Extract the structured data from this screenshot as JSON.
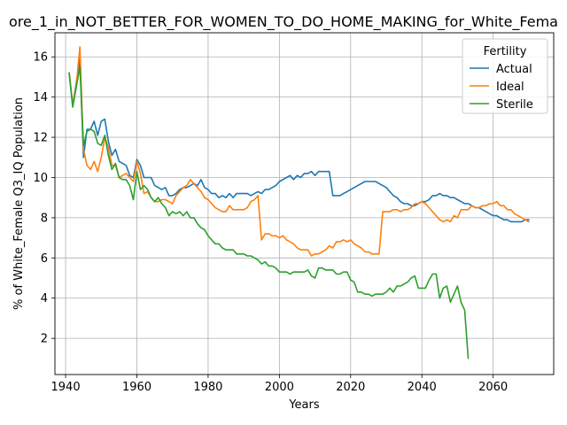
{
  "chart_data": {
    "type": "line",
    "title": "ore_1_in_NOT_BETTER_FOR_WOMEN_TO_DO_HOME_MAKING_for_White_Fema",
    "xlabel": "Years",
    "ylabel": "% of White_Female Q3_IQ Population",
    "xlim": [
      1937,
      2077
    ],
    "ylim": [
      0.2,
      17.2
    ],
    "xticks": [
      1940,
      1960,
      1980,
      2000,
      2020,
      2040,
      2060
    ],
    "yticks": [
      2,
      4,
      6,
      8,
      10,
      12,
      14,
      16
    ],
    "grid": true,
    "legend": {
      "title": "Fertility",
      "placement": "top-right"
    },
    "series": [
      {
        "name": "Actual",
        "color": "#1f77b4",
        "x": [
          1941,
          1942,
          1943,
          1944,
          1945,
          1946,
          1947,
          1948,
          1949,
          1950,
          1951,
          1952,
          1953,
          1954,
          1955,
          1956,
          1957,
          1958,
          1959,
          1960,
          1961,
          1962,
          1963,
          1964,
          1965,
          1966,
          1967,
          1968,
          1969,
          1970,
          1971,
          1972,
          1973,
          1974,
          1975,
          1976,
          1977,
          1978,
          1979,
          1980,
          1981,
          1982,
          1983,
          1984,
          1985,
          1986,
          1987,
          1988,
          1989,
          1990,
          1991,
          1992,
          1993,
          1994,
          1995,
          1996,
          1997,
          1998,
          1999,
          2000,
          2001,
          2002,
          2003,
          2004,
          2005,
          2006,
          2007,
          2008,
          2009,
          2010,
          2011,
          2012,
          2013,
          2014,
          2015,
          2016,
          2017,
          2018,
          2019,
          2020,
          2021,
          2022,
          2023,
          2024,
          2025,
          2026,
          2027,
          2028,
          2029,
          2030,
          2031,
          2032,
          2033,
          2034,
          2035,
          2036,
          2037,
          2038,
          2039,
          2040,
          2041,
          2042,
          2043,
          2044,
          2045,
          2046,
          2047,
          2048,
          2049,
          2050,
          2051,
          2052,
          2053,
          2054,
          2055,
          2056,
          2057,
          2058,
          2059,
          2060,
          2061,
          2062,
          2063,
          2064,
          2065,
          2066,
          2067,
          2068,
          2069,
          2070
        ],
        "values": [
          15.2,
          13.6,
          14.7,
          15.9,
          11.0,
          12.4,
          12.4,
          12.8,
          12.1,
          12.8,
          12.9,
          11.8,
          11.1,
          11.4,
          10.8,
          10.7,
          10.6,
          10.1,
          10.0,
          10.9,
          10.6,
          10.0,
          10.0,
          10.0,
          9.6,
          9.5,
          9.4,
          9.5,
          9.1,
          9.1,
          9.2,
          9.4,
          9.5,
          9.5,
          9.6,
          9.7,
          9.6,
          9.9,
          9.5,
          9.4,
          9.2,
          9.2,
          9.0,
          9.1,
          9.0,
          9.2,
          9.0,
          9.2,
          9.2,
          9.2,
          9.2,
          9.1,
          9.2,
          9.3,
          9.2,
          9.4,
          9.4,
          9.5,
          9.6,
          9.8,
          9.9,
          10.0,
          10.1,
          9.9,
          10.1,
          10.0,
          10.2,
          10.2,
          10.3,
          10.1,
          10.3,
          10.3,
          10.3,
          10.3,
          9.1,
          9.1,
          9.1,
          9.2,
          9.3,
          9.4,
          9.5,
          9.6,
          9.7,
          9.8,
          9.8,
          9.8,
          9.8,
          9.7,
          9.6,
          9.5,
          9.3,
          9.1,
          9.0,
          8.8,
          8.7,
          8.7,
          8.6,
          8.6,
          8.7,
          8.8,
          8.8,
          8.9,
          9.1,
          9.1,
          9.2,
          9.1,
          9.1,
          9.0,
          9.0,
          8.9,
          8.8,
          8.7,
          8.7,
          8.6,
          8.5,
          8.5,
          8.4,
          8.3,
          8.2,
          8.1,
          8.1,
          8.0,
          7.9,
          7.9,
          7.8,
          7.8,
          7.8,
          7.8,
          7.9,
          7.9
        ]
      },
      {
        "name": "Ideal",
        "color": "#ff7f0e",
        "x": [
          1941,
          1942,
          1943,
          1944,
          1945,
          1946,
          1947,
          1948,
          1949,
          1950,
          1951,
          1952,
          1953,
          1954,
          1955,
          1956,
          1957,
          1958,
          1959,
          1960,
          1961,
          1962,
          1963,
          1964,
          1965,
          1966,
          1967,
          1968,
          1969,
          1970,
          1971,
          1972,
          1973,
          1974,
          1975,
          1976,
          1977,
          1978,
          1979,
          1980,
          1981,
          1982,
          1983,
          1984,
          1985,
          1986,
          1987,
          1988,
          1989,
          1990,
          1991,
          1992,
          1993,
          1994,
          1995,
          1996,
          1997,
          1998,
          1999,
          2000,
          2001,
          2002,
          2003,
          2004,
          2005,
          2006,
          2007,
          2008,
          2009,
          2010,
          2011,
          2012,
          2013,
          2014,
          2015,
          2016,
          2017,
          2018,
          2019,
          2020,
          2021,
          2022,
          2023,
          2024,
          2025,
          2026,
          2027,
          2028,
          2029,
          2030,
          2031,
          2032,
          2033,
          2034,
          2035,
          2036,
          2037,
          2038,
          2039,
          2040,
          2041,
          2042,
          2043,
          2044,
          2045,
          2046,
          2047,
          2048,
          2049,
          2050,
          2051,
          2052,
          2053,
          2054,
          2055,
          2056,
          2057,
          2058,
          2059,
          2060,
          2061,
          2062,
          2063,
          2064,
          2065,
          2066,
          2067,
          2068,
          2069,
          2070
        ],
        "values": [
          15.2,
          13.6,
          14.6,
          16.5,
          11.4,
          10.6,
          10.4,
          10.8,
          10.3,
          11.0,
          12.0,
          11.5,
          10.6,
          10.6,
          10.0,
          10.1,
          10.2,
          10.0,
          9.8,
          10.8,
          10.2,
          9.2,
          9.3,
          9.0,
          8.8,
          8.8,
          8.9,
          8.9,
          8.8,
          8.7,
          9.1,
          9.3,
          9.5,
          9.6,
          9.9,
          9.7,
          9.5,
          9.3,
          9.0,
          8.9,
          8.7,
          8.5,
          8.4,
          8.3,
          8.3,
          8.6,
          8.4,
          8.4,
          8.4,
          8.4,
          8.5,
          8.8,
          8.9,
          9.1,
          6.9,
          7.2,
          7.2,
          7.1,
          7.1,
          7.0,
          7.1,
          6.9,
          6.8,
          6.7,
          6.5,
          6.4,
          6.4,
          6.4,
          6.1,
          6.2,
          6.2,
          6.3,
          6.4,
          6.6,
          6.5,
          6.8,
          6.8,
          6.9,
          6.8,
          6.9,
          6.7,
          6.6,
          6.5,
          6.3,
          6.3,
          6.2,
          6.2,
          6.2,
          8.3,
          8.3,
          8.3,
          8.4,
          8.4,
          8.3,
          8.4,
          8.4,
          8.5,
          8.7,
          8.7,
          8.8,
          8.7,
          8.5,
          8.3,
          8.1,
          7.9,
          7.8,
          7.9,
          7.8,
          8.1,
          8.0,
          8.4,
          8.4,
          8.4,
          8.6,
          8.5,
          8.5,
          8.6,
          8.6,
          8.7,
          8.7,
          8.8,
          8.6,
          8.6,
          8.4,
          8.4,
          8.2,
          8.1,
          8.0,
          7.9,
          7.8
        ]
      },
      {
        "name": "Sterile",
        "color": "#2ca02c",
        "x": [
          1941,
          1942,
          1943,
          1944,
          1945,
          1946,
          1947,
          1948,
          1949,
          1950,
          1951,
          1952,
          1953,
          1954,
          1955,
          1956,
          1957,
          1958,
          1959,
          1960,
          1961,
          1962,
          1963,
          1964,
          1965,
          1966,
          1967,
          1968,
          1969,
          1970,
          1971,
          1972,
          1973,
          1974,
          1975,
          1976,
          1977,
          1978,
          1979,
          1980,
          1981,
          1982,
          1983,
          1984,
          1985,
          1986,
          1987,
          1988,
          1989,
          1990,
          1991,
          1992,
          1993,
          1994,
          1995,
          1996,
          1997,
          1998,
          1999,
          2000,
          2001,
          2002,
          2003,
          2004,
          2005,
          2006,
          2007,
          2008,
          2009,
          2010,
          2011,
          2012,
          2013,
          2014,
          2015,
          2016,
          2017,
          2018,
          2019,
          2020,
          2021,
          2022,
          2023,
          2024,
          2025,
          2026,
          2027,
          2028,
          2029,
          2030,
          2031,
          2032,
          2033,
          2034,
          2035,
          2036,
          2037,
          2038,
          2039,
          2040,
          2041,
          2042,
          2043,
          2044,
          2045,
          2046,
          2047,
          2048,
          2049,
          2050,
          2051,
          2052,
          2053
        ],
        "values": [
          15.2,
          13.5,
          14.5,
          15.5,
          11.6,
          12.3,
          12.4,
          12.3,
          11.7,
          11.6,
          12.1,
          11.1,
          10.4,
          10.7,
          10.0,
          9.9,
          9.9,
          9.6,
          8.9,
          10.3,
          9.4,
          9.6,
          9.4,
          9.0,
          8.8,
          9.0,
          8.7,
          8.5,
          8.1,
          8.3,
          8.2,
          8.3,
          8.1,
          8.3,
          8.0,
          8.0,
          7.7,
          7.5,
          7.4,
          7.1,
          6.9,
          6.7,
          6.7,
          6.5,
          6.4,
          6.4,
          6.4,
          6.2,
          6.2,
          6.2,
          6.1,
          6.1,
          6.0,
          5.9,
          5.7,
          5.8,
          5.6,
          5.6,
          5.5,
          5.3,
          5.3,
          5.3,
          5.2,
          5.3,
          5.3,
          5.3,
          5.3,
          5.4,
          5.1,
          5.0,
          5.5,
          5.5,
          5.4,
          5.4,
          5.4,
          5.2,
          5.2,
          5.3,
          5.3,
          4.9,
          4.8,
          4.3,
          4.3,
          4.2,
          4.2,
          4.1,
          4.2,
          4.2,
          4.2,
          4.3,
          4.5,
          4.3,
          4.6,
          4.6,
          4.7,
          4.8,
          5.0,
          5.1,
          4.5,
          4.5,
          4.5,
          4.9,
          5.2,
          5.2,
          4.0,
          4.5,
          4.6,
          3.8,
          4.2,
          4.6,
          3.8,
          3.4,
          1.0
        ]
      }
    ]
  }
}
